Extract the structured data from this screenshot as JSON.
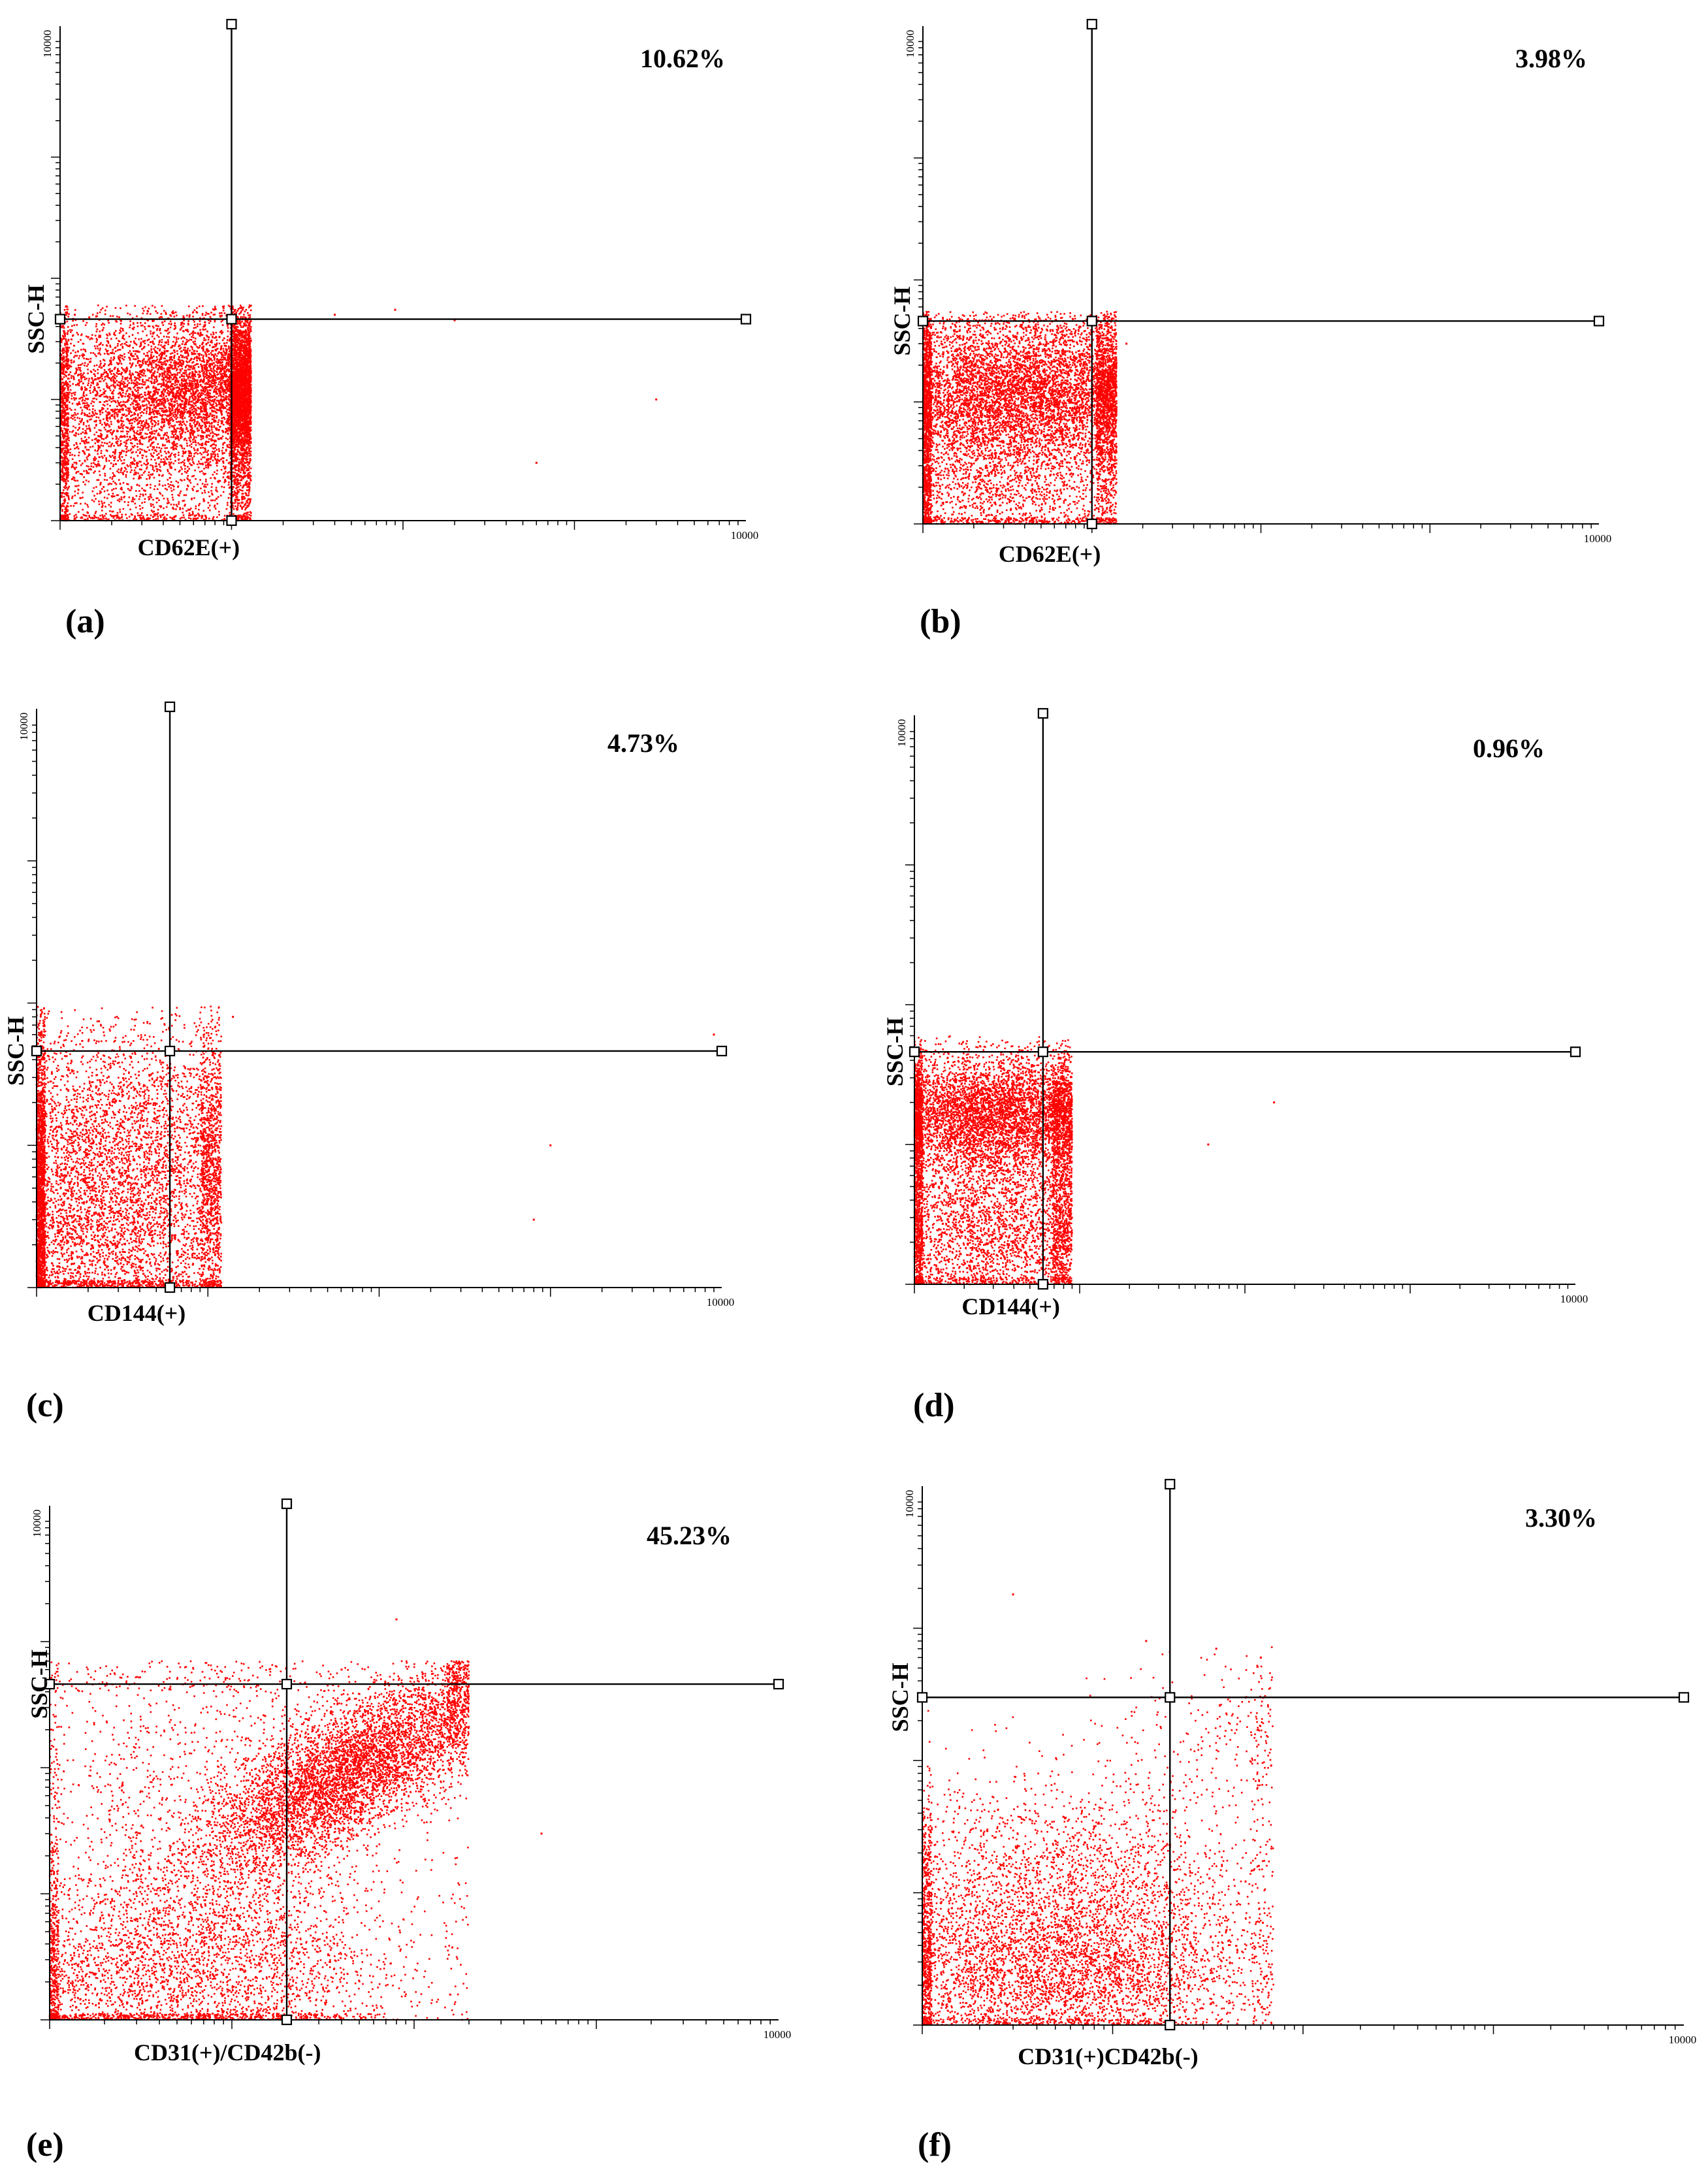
{
  "chart_data": [
    {
      "type": "scatter",
      "panel": "(a)",
      "percent": "10.62%",
      "xlabel": "CD62E(+)",
      "ylabel": "SSC-H",
      "x_tick": "10000",
      "y_tick": "10000",
      "xlim": [
        1,
        10000
      ],
      "ylim": [
        1,
        10000
      ],
      "gate": [
        10,
        46
      ],
      "clusters": [
        {
          "cx": 11,
          "cy": 12,
          "sx": 0.45,
          "sy": 0.3,
          "n": 5200
        },
        {
          "cx": 3,
          "cy": 11,
          "sx": 0.45,
          "sy": 0.38,
          "n": 2600
        },
        {
          "cx": 4,
          "cy": 2,
          "sx": 0.55,
          "sy": 0.3,
          "n": 1500
        }
      ],
      "x_max": 13,
      "y_cap": 60,
      "outliers": [
        [
          40,
          50
        ],
        [
          90,
          55
        ],
        [
          200,
          45
        ],
        [
          3000,
          10
        ],
        [
          600,
          3
        ]
      ]
    },
    {
      "type": "scatter",
      "panel": "(b)",
      "percent": "3.98%",
      "xlabel": "CD62E(+)",
      "ylabel": "SSC-H",
      "x_tick": "10000",
      "y_tick": "10000",
      "xlim": [
        1,
        10000
      ],
      "ylim": [
        1,
        10000
      ],
      "gate": [
        10,
        46
      ],
      "clusters": [
        {
          "cx": 6,
          "cy": 12,
          "sx": 0.45,
          "sy": 0.3,
          "n": 4800
        },
        {
          "cx": 2,
          "cy": 12,
          "sx": 0.4,
          "sy": 0.35,
          "n": 2600
        },
        {
          "cx": 3,
          "cy": 2,
          "sx": 0.55,
          "sy": 0.3,
          "n": 2000
        }
      ],
      "x_max": 14,
      "y_cap": 55,
      "outliers": [
        [
          12,
          50
        ],
        [
          16,
          30
        ]
      ]
    },
    {
      "type": "scatter",
      "panel": "(c)",
      "percent": "4.73%",
      "xlabel": "CD144(+)",
      "ylabel": "SSC-H",
      "x_tick": "10000",
      "y_tick": "10000",
      "xlim": [
        1,
        10000
      ],
      "ylim": [
        1,
        10000
      ],
      "gate": [
        6,
        46
      ],
      "clusters": [
        {
          "cx": 3,
          "cy": 10,
          "sx": 0.55,
          "sy": 0.45,
          "n": 4400
        },
        {
          "cx": 2,
          "cy": 2,
          "sx": 0.55,
          "sy": 0.35,
          "n": 3000
        }
      ],
      "x_max": 12,
      "y_cap": 95,
      "outliers": [
        [
          1000,
          10
        ],
        [
          800,
          3
        ],
        [
          9000,
          60
        ],
        [
          14,
          80
        ]
      ]
    },
    {
      "type": "scatter",
      "panel": "(d)",
      "percent": "0.96%",
      "xlabel": "CD144(+)",
      "ylabel": "SSC-H",
      "x_tick": "10000",
      "y_tick": "10000",
      "xlim": [
        1,
        10000
      ],
      "ylim": [
        1,
        10000
      ],
      "gate": [
        6,
        46
      ],
      "clusters": [
        {
          "cx": 3,
          "cy": 17,
          "sx": 0.4,
          "sy": 0.2,
          "n": 4600
        },
        {
          "cx": 3,
          "cy": 8,
          "sx": 0.5,
          "sy": 0.35,
          "n": 2300
        },
        {
          "cx": 3,
          "cy": 2,
          "sx": 0.5,
          "sy": 0.25,
          "n": 2300
        }
      ],
      "x_max": 9,
      "y_cap": 60,
      "outliers": [
        [
          60,
          10
        ],
        [
          150,
          20
        ]
      ]
    },
    {
      "type": "scatter",
      "panel": "(e)",
      "percent": "45.23%",
      "xlabel": "CD31(+)/CD42b(-)",
      "ylabel": "SSC-H",
      "x_tick": "10000",
      "y_tick": "10000",
      "xlim": [
        1,
        10000
      ],
      "ylim": [
        1,
        10000
      ],
      "gate": [
        20,
        460
      ],
      "clusters": [
        {
          "cx": 45,
          "cy": 95,
          "sx": 0.42,
          "sy": 0.4,
          "rho": 0.75,
          "n": 5500
        },
        {
          "cx": 5,
          "cy": 2.5,
          "sx": 0.6,
          "sy": 0.4,
          "n": 3200
        },
        {
          "cx": 8,
          "cy": 40,
          "sx": 0.6,
          "sy": 0.9,
          "n": 1800
        }
      ],
      "x_max": 200,
      "y_cap": 700,
      "outliers": [
        [
          80,
          1500
        ],
        [
          40,
          600
        ],
        [
          500,
          30
        ]
      ]
    },
    {
      "type": "scatter",
      "panel": "(f)",
      "percent": "3.30%",
      "xlabel": "CD31(+)CD42b(-)",
      "ylabel": "SSC-H",
      "x_tick": "10000",
      "y_tick": "10000",
      "xlim": [
        1,
        10000
      ],
      "ylim": [
        1,
        10000
      ],
      "gate": [
        20,
        300
      ],
      "clusters": [
        {
          "cx": 5,
          "cy": 8,
          "sx": 0.55,
          "sy": 0.45,
          "n": 3500
        },
        {
          "cx": 5,
          "cy": 2.2,
          "sx": 0.55,
          "sy": 0.25,
          "n": 2500
        },
        {
          "cx": 40,
          "cy": 150,
          "sx": 0.35,
          "sy": 0.3,
          "n": 260
        }
      ],
      "x_max": 70,
      "y_cap": 1000,
      "outliers": [
        [
          3,
          1800
        ],
        [
          15,
          800
        ],
        [
          60,
          600
        ],
        [
          35,
          700
        ]
      ]
    }
  ]
}
